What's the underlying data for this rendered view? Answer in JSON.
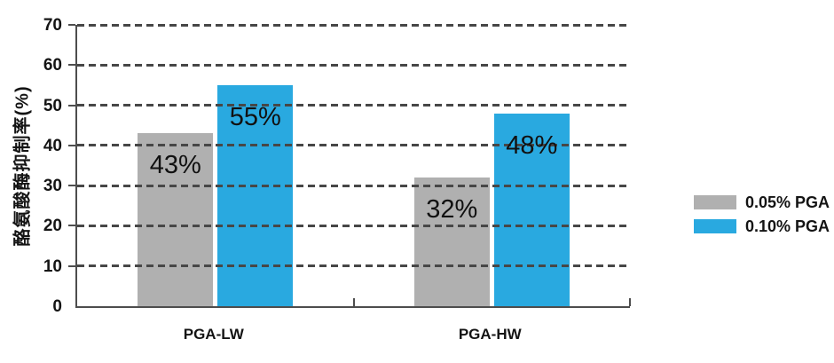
{
  "chart_data": {
    "type": "bar",
    "title": "",
    "ylabel": "酪氨酸酶抑制率(%)",
    "xlabel": "",
    "ylim": [
      0,
      70
    ],
    "yticks": [
      0,
      10,
      20,
      30,
      40,
      50,
      60,
      70
    ],
    "grid": "horizontal dashed, drawn over bars",
    "legend_position": "right of plot, middle",
    "categories": [
      "PGA-LW",
      "PGA-HW"
    ],
    "series": [
      {
        "name": "0.05% PGA",
        "color": "#b0b0b0",
        "values": [
          43,
          32
        ],
        "data_labels": [
          "43%",
          "32%"
        ]
      },
      {
        "name": "0.10% PGA",
        "color": "#29a9e0",
        "values": [
          55,
          48
        ],
        "data_labels": [
          "55%",
          "48%"
        ]
      }
    ],
    "axis_color": "#4d4d4d",
    "gridline_color": "#474747",
    "label_color": "#141414"
  }
}
